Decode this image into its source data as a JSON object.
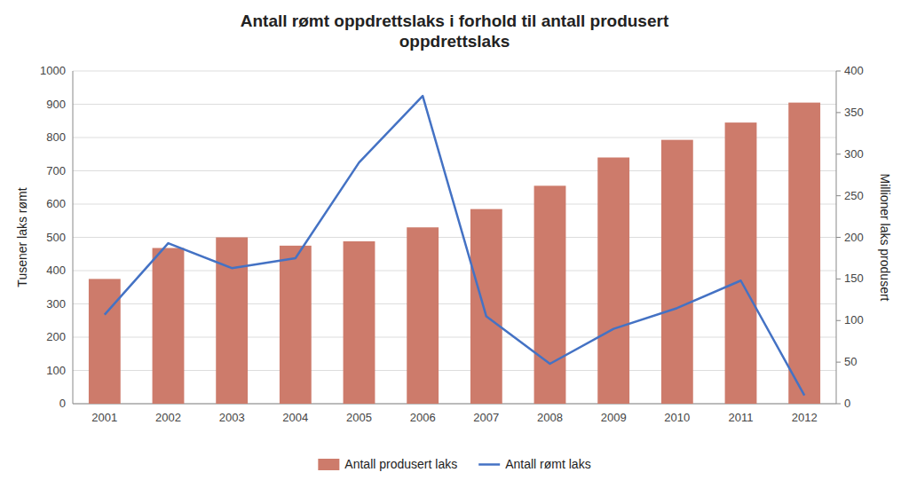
{
  "chart_data": {
    "type": "bar",
    "title": "Antall rømt oppdrettslaks i forhold til antall produsert\noppdrettslaks",
    "categories": [
      "2001",
      "2002",
      "2003",
      "2004",
      "2005",
      "2006",
      "2007",
      "2008",
      "2009",
      "2010",
      "2011",
      "2012"
    ],
    "series": [
      {
        "name": "Antall produsert laks",
        "type": "bar",
        "color": "#CD7B6B",
        "values": [
          375,
          468,
          500,
          475,
          488,
          530,
          585,
          655,
          740,
          793,
          845,
          905
        ]
      },
      {
        "name": "Antall rømt laks",
        "type": "line",
        "color": "#4472C4",
        "axis": "y2",
        "values": [
          107,
          193,
          163,
          175,
          290,
          370,
          105,
          48,
          90,
          115,
          148,
          10
        ]
      }
    ],
    "ylabel": "Tusener laks rømt",
    "y2label": "Millioner laks produsert",
    "ylim": [
      0,
      1000
    ],
    "yticks": [
      0,
      100,
      200,
      300,
      400,
      500,
      600,
      700,
      800,
      900,
      1000
    ],
    "y2lim": [
      0,
      400
    ],
    "y2ticks": [
      0,
      50,
      100,
      150,
      200,
      250,
      300,
      350,
      400
    ],
    "grid": true,
    "legend": "bottom"
  }
}
